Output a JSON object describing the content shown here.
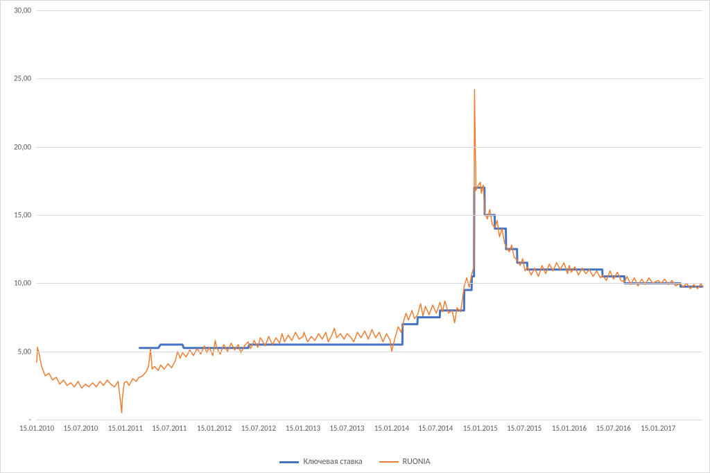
{
  "chart": {
    "type": "line",
    "background_color": "#ffffff",
    "border_color": "#d9d9d9",
    "grid_color": "#d9d9d9",
    "text_color": "#595959",
    "label_fontsize": 11,
    "legend_fontsize": 12,
    "ylim": [
      0,
      30
    ],
    "ytick_step": 5,
    "yticks": [
      {
        "v": 0,
        "label": "-"
      },
      {
        "v": 5,
        "label": "5,00"
      },
      {
        "v": 10,
        "label": "10,00"
      },
      {
        "v": 15,
        "label": "15,00"
      },
      {
        "v": 20,
        "label": "20,00"
      },
      {
        "v": 25,
        "label": "25,00"
      },
      {
        "v": 30,
        "label": "30,00"
      }
    ],
    "xlim": [
      0,
      2740
    ],
    "xticks": [
      {
        "v": 0,
        "label": "15.01.2010"
      },
      {
        "v": 181,
        "label": "15.07.2010"
      },
      {
        "v": 365,
        "label": "15.01.2011"
      },
      {
        "v": 546,
        "label": "15.07.2011"
      },
      {
        "v": 731,
        "label": "15.01.2012"
      },
      {
        "v": 913,
        "label": "15.07.2012"
      },
      {
        "v": 1096,
        "label": "15.01.2013"
      },
      {
        "v": 1277,
        "label": "15.07.2013"
      },
      {
        "v": 1461,
        "label": "15.01.2014"
      },
      {
        "v": 1642,
        "label": "15.07.2014"
      },
      {
        "v": 1826,
        "label": "15.01.2015"
      },
      {
        "v": 2007,
        "label": "15.07.2015"
      },
      {
        "v": 2192,
        "label": "15.01.2016"
      },
      {
        "v": 2374,
        "label": "15.07.2016"
      },
      {
        "v": 2558,
        "label": "15.01.2017"
      }
    ],
    "series": [
      {
        "name": "Ключевая ставка",
        "color": "#4472c4",
        "line_width": 3,
        "points": [
          [
            424,
            5.25
          ],
          [
            500,
            5.25
          ],
          [
            510,
            5.5
          ],
          [
            600,
            5.5
          ],
          [
            605,
            5.25
          ],
          [
            870,
            5.25
          ],
          [
            875,
            5.5
          ],
          [
            1096,
            5.5
          ],
          [
            1461,
            5.5
          ],
          [
            1505,
            5.5
          ],
          [
            1506,
            7.0
          ],
          [
            1567,
            7.0
          ],
          [
            1568,
            7.5
          ],
          [
            1659,
            7.5
          ],
          [
            1660,
            8.0
          ],
          [
            1759,
            8.0
          ],
          [
            1760,
            9.5
          ],
          [
            1790,
            9.5
          ],
          [
            1791,
            10.5
          ],
          [
            1800,
            10.5
          ],
          [
            1801,
            17.0
          ],
          [
            1843,
            17.0
          ],
          [
            1844,
            15.0
          ],
          [
            1885,
            15.0
          ],
          [
            1886,
            14.0
          ],
          [
            1931,
            14.0
          ],
          [
            1932,
            12.5
          ],
          [
            1977,
            12.5
          ],
          [
            1978,
            11.5
          ],
          [
            2019,
            11.5
          ],
          [
            2020,
            11.0
          ],
          [
            2328,
            11.0
          ],
          [
            2329,
            10.5
          ],
          [
            2419,
            10.5
          ],
          [
            2420,
            10.0
          ],
          [
            2649,
            10.0
          ],
          [
            2650,
            9.75
          ],
          [
            2740,
            9.75
          ]
        ]
      },
      {
        "name": "RUONIA",
        "color": "#ed7d31",
        "line_width": 1.5,
        "points": [
          [
            0,
            4.2
          ],
          [
            3,
            5.3
          ],
          [
            10,
            4.8
          ],
          [
            20,
            3.9
          ],
          [
            35,
            3.2
          ],
          [
            50,
            3.4
          ],
          [
            65,
            2.9
          ],
          [
            80,
            3.1
          ],
          [
            95,
            2.6
          ],
          [
            110,
            2.9
          ],
          [
            125,
            2.5
          ],
          [
            140,
            2.7
          ],
          [
            155,
            2.4
          ],
          [
            170,
            2.8
          ],
          [
            185,
            2.3
          ],
          [
            200,
            2.6
          ],
          [
            215,
            2.4
          ],
          [
            230,
            2.7
          ],
          [
            245,
            2.4
          ],
          [
            260,
            2.8
          ],
          [
            275,
            2.5
          ],
          [
            290,
            2.9
          ],
          [
            305,
            2.6
          ],
          [
            320,
            2.4
          ],
          [
            335,
            2.8
          ],
          [
            350,
            0.5
          ],
          [
            352,
            1.5
          ],
          [
            360,
            2.7
          ],
          [
            370,
            2.8
          ],
          [
            380,
            2.5
          ],
          [
            395,
            3.0
          ],
          [
            410,
            2.8
          ],
          [
            420,
            3.1
          ],
          [
            424,
            3.1
          ],
          [
            435,
            3.2
          ],
          [
            450,
            3.5
          ],
          [
            460,
            3.9
          ],
          [
            468,
            5.2
          ],
          [
            475,
            3.7
          ],
          [
            485,
            3.9
          ],
          [
            500,
            3.6
          ],
          [
            510,
            4.0
          ],
          [
            525,
            3.7
          ],
          [
            540,
            4.1
          ],
          [
            555,
            3.8
          ],
          [
            570,
            4.3
          ],
          [
            580,
            5.0
          ],
          [
            590,
            4.5
          ],
          [
            600,
            4.9
          ],
          [
            615,
            4.6
          ],
          [
            630,
            5.1
          ],
          [
            645,
            4.7
          ],
          [
            660,
            5.2
          ],
          [
            675,
            4.8
          ],
          [
            690,
            5.4
          ],
          [
            700,
            4.9
          ],
          [
            710,
            5.3
          ],
          [
            725,
            4.7
          ],
          [
            735,
            5.8
          ],
          [
            740,
            5.3
          ],
          [
            755,
            4.8
          ],
          [
            770,
            5.5
          ],
          [
            785,
            5.0
          ],
          [
            800,
            5.6
          ],
          [
            815,
            5.1
          ],
          [
            830,
            5.5
          ],
          [
            840,
            4.9
          ],
          [
            855,
            5.4
          ],
          [
            870,
            5.7
          ],
          [
            880,
            5.2
          ],
          [
            895,
            5.8
          ],
          [
            910,
            5.3
          ],
          [
            920,
            6.0
          ],
          [
            925,
            5.9
          ],
          [
            940,
            5.4
          ],
          [
            955,
            6.1
          ],
          [
            970,
            5.5
          ],
          [
            985,
            6.0
          ],
          [
            1000,
            5.6
          ],
          [
            1010,
            6.3
          ],
          [
            1020,
            5.7
          ],
          [
            1035,
            6.2
          ],
          [
            1050,
            5.8
          ],
          [
            1065,
            6.4
          ],
          [
            1080,
            5.9
          ],
          [
            1096,
            6.1
          ],
          [
            1100,
            6.4
          ],
          [
            1115,
            5.7
          ],
          [
            1130,
            6.1
          ],
          [
            1145,
            5.8
          ],
          [
            1160,
            6.3
          ],
          [
            1175,
            5.9
          ],
          [
            1190,
            6.4
          ],
          [
            1200,
            5.7
          ],
          [
            1215,
            6.2
          ],
          [
            1225,
            6.7
          ],
          [
            1235,
            6.0
          ],
          [
            1250,
            6.3
          ],
          [
            1265,
            5.9
          ],
          [
            1277,
            6.3
          ],
          [
            1290,
            6.1
          ],
          [
            1305,
            5.7
          ],
          [
            1320,
            6.4
          ],
          [
            1335,
            6.0
          ],
          [
            1350,
            6.5
          ],
          [
            1365,
            5.9
          ],
          [
            1380,
            6.6
          ],
          [
            1395,
            6.0
          ],
          [
            1410,
            6.4
          ],
          [
            1425,
            5.7
          ],
          [
            1440,
            6.3
          ],
          [
            1455,
            5.8
          ],
          [
            1461,
            5.0
          ],
          [
            1475,
            6.0
          ],
          [
            1488,
            6.8
          ],
          [
            1500,
            6.4
          ],
          [
            1510,
            7.2
          ],
          [
            1520,
            7.8
          ],
          [
            1530,
            7.3
          ],
          [
            1545,
            8.0
          ],
          [
            1555,
            7.4
          ],
          [
            1568,
            7.7
          ],
          [
            1580,
            8.5
          ],
          [
            1590,
            7.6
          ],
          [
            1600,
            8.3
          ],
          [
            1615,
            7.7
          ],
          [
            1630,
            8.4
          ],
          [
            1645,
            7.8
          ],
          [
            1660,
            8.6
          ],
          [
            1670,
            7.9
          ],
          [
            1680,
            8.7
          ],
          [
            1695,
            7.8
          ],
          [
            1710,
            8.0
          ],
          [
            1720,
            7.1
          ],
          [
            1730,
            8.2
          ],
          [
            1745,
            7.9
          ],
          [
            1760,
            9.8
          ],
          [
            1770,
            10.4
          ],
          [
            1780,
            9.7
          ],
          [
            1791,
            10.7
          ],
          [
            1800,
            11.2
          ],
          [
            1802,
            24.2
          ],
          [
            1808,
            16.8
          ],
          [
            1815,
            17.1
          ],
          [
            1826,
            17.4
          ],
          [
            1830,
            16.6
          ],
          [
            1838,
            17.2
          ],
          [
            1844,
            15.2
          ],
          [
            1855,
            14.7
          ],
          [
            1865,
            15.4
          ],
          [
            1875,
            14.3
          ],
          [
            1886,
            14.1
          ],
          [
            1895,
            14.6
          ],
          [
            1905,
            13.4
          ],
          [
            1915,
            14.0
          ],
          [
            1925,
            13.0
          ],
          [
            1932,
            12.7
          ],
          [
            1945,
            12.3
          ],
          [
            1955,
            12.8
          ],
          [
            1965,
            11.9
          ],
          [
            1978,
            11.7
          ],
          [
            1990,
            11.3
          ],
          [
            2000,
            11.8
          ],
          [
            2010,
            10.9
          ],
          [
            2020,
            11.2
          ],
          [
            2035,
            10.6
          ],
          [
            2050,
            11.1
          ],
          [
            2065,
            10.5
          ],
          [
            2080,
            11.3
          ],
          [
            2095,
            10.7
          ],
          [
            2110,
            11.4
          ],
          [
            2125,
            10.9
          ],
          [
            2140,
            11.5
          ],
          [
            2155,
            11.0
          ],
          [
            2170,
            11.5
          ],
          [
            2185,
            10.7
          ],
          [
            2192,
            11.3
          ],
          [
            2200,
            10.8
          ],
          [
            2215,
            11.2
          ],
          [
            2230,
            10.6
          ],
          [
            2245,
            11.1
          ],
          [
            2260,
            10.7
          ],
          [
            2275,
            11.0
          ],
          [
            2290,
            10.5
          ],
          [
            2305,
            10.9
          ],
          [
            2320,
            10.4
          ],
          [
            2329,
            10.6
          ],
          [
            2345,
            10.2
          ],
          [
            2360,
            10.9
          ],
          [
            2374,
            10.3
          ],
          [
            2390,
            10.8
          ],
          [
            2405,
            10.2
          ],
          [
            2420,
            10.1
          ],
          [
            2430,
            10.5
          ],
          [
            2445,
            9.9
          ],
          [
            2460,
            10.4
          ],
          [
            2475,
            9.8
          ],
          [
            2490,
            10.3
          ],
          [
            2505,
            9.9
          ],
          [
            2520,
            10.4
          ],
          [
            2535,
            10.0
          ],
          [
            2558,
            10.2
          ],
          [
            2570,
            10.0
          ],
          [
            2585,
            10.3
          ],
          [
            2600,
            9.9
          ],
          [
            2615,
            10.2
          ],
          [
            2630,
            9.8
          ],
          [
            2649,
            10.0
          ],
          [
            2660,
            9.7
          ],
          [
            2675,
            10.0
          ],
          [
            2690,
            9.6
          ],
          [
            2705,
            9.9
          ],
          [
            2720,
            9.6
          ],
          [
            2735,
            10.0
          ],
          [
            2740,
            9.7
          ]
        ]
      }
    ],
    "legend": {
      "position": "bottom",
      "items": [
        {
          "label": "Ключевая ставка",
          "color": "#4472c4",
          "line_width": 3
        },
        {
          "label": "RUONIA",
          "color": "#ed7d31",
          "line_width": 1.5
        }
      ]
    }
  }
}
